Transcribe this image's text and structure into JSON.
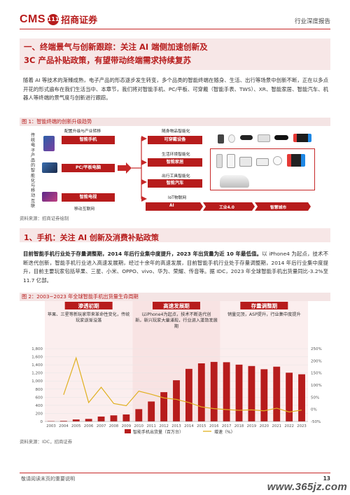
{
  "header": {
    "logo_cms": "CMS",
    "logo_badge": "111",
    "logo_cn": "招商证券",
    "report_type": "行业深度报告"
  },
  "section1": {
    "title_line1": "一、终端景气与创新跟踪：关注 AI 端侧加速创新及",
    "title_line2": "3C 产品补贴政策，有望带动终端需求持续复苏"
  },
  "para1": "随着 AI 等技术的渐臻成熟，电子产品的形态逐步发生转变，多个品类的智能终端在随身、生活、出行等场景中创新不断，正在以多点开花的形式遍布在我们生活当中、本章节，我们将对智能手机、PC/平板、可穿戴（智能手表、TWS）、XR、智能家居、智能汽车、机器人等终端的景气度与创新进行跟踪。",
  "figure1": {
    "title": "图 1：智能终端的创新升级趋势",
    "left_vertical": "传统电子产品的智能化与移动互联",
    "top_label": "配置升级与产业转移",
    "bottom_label": "移动互联网",
    "boxes": [
      "智能手机",
      "PC/平板电脑",
      "智能电视"
    ],
    "right_labels": [
      "随身物品智能化",
      "生活环境智能化",
      "出行工具智能化",
      "IoT物联网"
    ],
    "right_boxes": [
      "可穿戴设备",
      "智能家居",
      "智能汽车"
    ],
    "bottom_chain": [
      "AI",
      "工业4.0",
      "智慧城市"
    ],
    "source": "资料来源：招商证券绘制"
  },
  "section2": {
    "title": "1、手机：关注 AI 创新及消费补贴政策"
  },
  "para2": {
    "bold": "目前智能手机行业处于存量调整期，2014 年后行业集中度提升，2023 年出货量为近 10 年最低值。",
    "normal": "以 iPhone4 为起点，技术不断迭代创新，智能手机行业进入高速发展期，经过十余年的高速发展，目前智能手机行业处于存量调整期，2014 年后行业集中度提升，目前主要玩家包括苹果、三星、小米、OPPO、vivo、华为、荣耀、传音等。据 IDC，2023 年全球智能手机出货量同比-3.2%至 11.7 亿部。"
  },
  "figure2": {
    "title": "图 2：2003~2023 年全球智能手机出货量生命周期",
    "source": "资料来源：IDC，招商证券"
  },
  "chart_data": {
    "type": "bar",
    "title": "",
    "categories": [
      "2003",
      "2004",
      "2005",
      "2006",
      "2007",
      "2008",
      "2009",
      "2010",
      "2011",
      "2012",
      "2013",
      "2014",
      "2015",
      "2016",
      "2017",
      "2018",
      "2019",
      "2020",
      "2021",
      "2022",
      "2023"
    ],
    "series": [
      {
        "name": "智能手机出货量（百万台）",
        "type": "bar",
        "axis": "left",
        "color": "#b71c1c",
        "values": [
          10,
          16,
          50,
          64,
          122,
          151,
          174,
          305,
          494,
          725,
          1019,
          1301,
          1437,
          1473,
          1465,
          1405,
          1371,
          1292,
          1355,
          1206,
          1167
        ]
      },
      {
        "name": "增速（%）",
        "type": "line",
        "axis": "right",
        "color": "#e0b020",
        "values": [
          null,
          60,
          212,
          28,
          91,
          24,
          15,
          75,
          62,
          47,
          41,
          28,
          10,
          3,
          -1,
          -4,
          -2,
          -6,
          5,
          -11,
          -3
        ]
      }
    ],
    "ylim_left": [
      0,
      1800
    ],
    "yticks_left": [
      "0",
      "200",
      "400",
      "600",
      "800",
      "1,000",
      "1,200",
      "1,400",
      "1,600",
      "1,800"
    ],
    "ylim_right": [
      -50,
      250
    ],
    "yticks_right": [
      "-50%",
      "0%",
      "50%",
      "100%",
      "150%",
      "200%",
      "250%"
    ],
    "legend_position": "bottom",
    "phases": [
      {
        "name": "渗透初期",
        "desc": "苹果、三星等新玩家带来革命性变化，传统玩家逐渐没落"
      },
      {
        "name": "高速发展期",
        "desc": "以iPhone4为起点，技术不断迭代创新，新兴玩家大量涌现，行业进入蓬勃发展期"
      },
      {
        "name": "存量调整期",
        "desc": "销量见顶，ASP提升，行业集中度提升"
      }
    ]
  },
  "footer": {
    "note": "敬请阅读末页的重要说明",
    "page": "13",
    "watermark": "www.365jz.com"
  }
}
